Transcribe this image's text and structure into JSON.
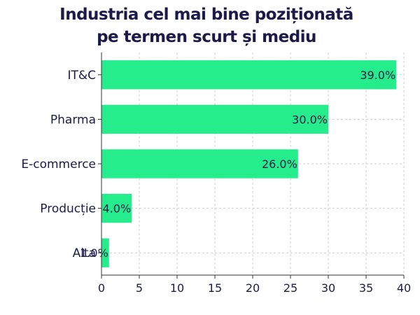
{
  "chart_data": {
    "type": "bar",
    "orientation": "horizontal",
    "title_lines": [
      "Industria cel mai bine poziționată",
      "pe termen scurt și mediu"
    ],
    "categories": [
      "IT&C",
      "Pharma",
      "E-commerce",
      "Producție",
      "Alta"
    ],
    "values": [
      39.0,
      30.0,
      26.0,
      4.0,
      1.0
    ],
    "data_labels": [
      "39.0%",
      "30.0%",
      "26.0%",
      "4.0%",
      "1.0%"
    ],
    "xlim": [
      0,
      40
    ],
    "xticks": [
      "0",
      "5",
      "10",
      "15",
      "20",
      "25",
      "30",
      "35",
      "40"
    ],
    "grid": true,
    "bar_color": "#26ed8b",
    "text_color": "#1c1a4a"
  }
}
